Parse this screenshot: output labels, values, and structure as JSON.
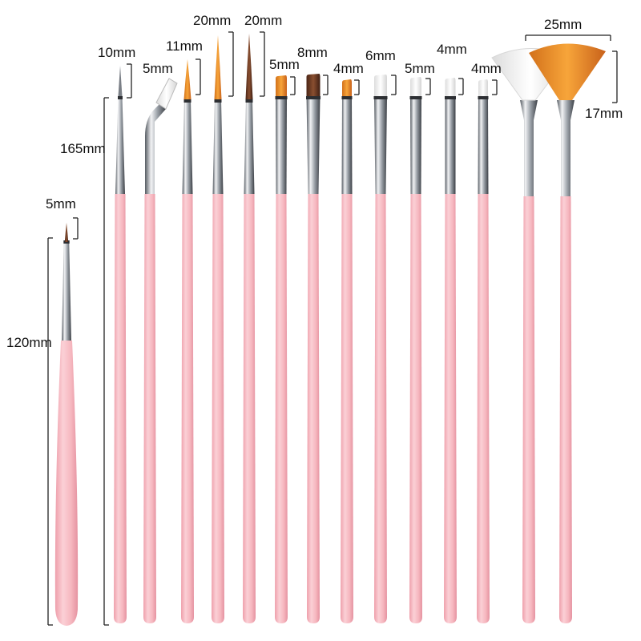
{
  "colors": {
    "handle": "#f6b7bf",
    "handle_shade": "#e99aa6",
    "ferrule": "#b8bcc2",
    "ferrule_dark": "#3a3a3a",
    "bristle_orange": "#e58a1f",
    "bristle_brown": "#6b3a22",
    "bristle_white": "#f4f4f4",
    "dimension_line": "#222222"
  },
  "labels": {
    "dotting_length": "120mm",
    "dotting_tip": "5mm",
    "brush_length": "165mm",
    "b1_tip": "10mm",
    "b2_tip": "5mm",
    "b3_tip": "11mm",
    "b4_tip": "20mm",
    "b5_tip": "20mm",
    "b6_tip": "5mm",
    "b7_tip": "8mm",
    "b8_tip": "4mm",
    "b9_tip": "6mm",
    "b10_tip": "5mm",
    "b11_tip": "4mm",
    "b12_tip": "4mm",
    "fan_width": "25mm",
    "fan_height": "17mm"
  }
}
